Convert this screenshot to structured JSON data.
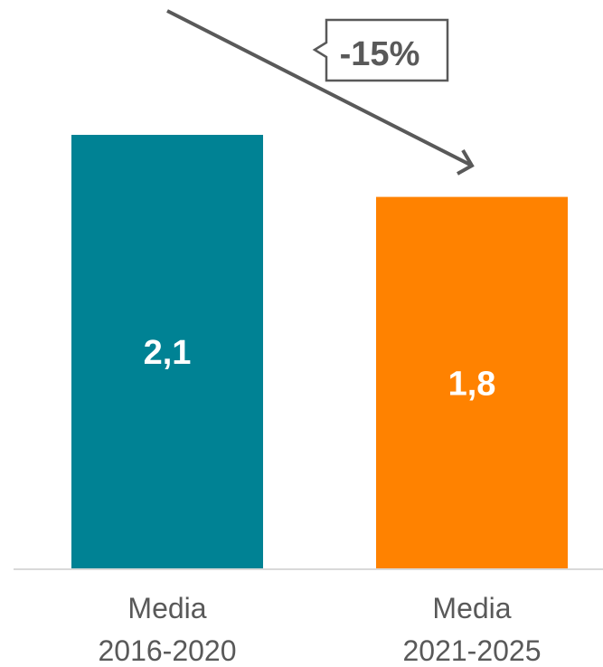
{
  "chart_data": {
    "type": "bar",
    "categories": [
      [
        "Media",
        "2016-2020"
      ],
      [
        "Media",
        "2021-2025"
      ]
    ],
    "values": [
      2.1,
      1.8
    ],
    "value_labels": [
      "2,1",
      "1,8"
    ],
    "colors": [
      "#008294",
      "#FF8200"
    ],
    "annotation": "-15%",
    "title": "",
    "xlabel": "",
    "ylabel": "",
    "ylim": [
      0,
      2.1
    ],
    "grid": false,
    "legend": "none"
  }
}
